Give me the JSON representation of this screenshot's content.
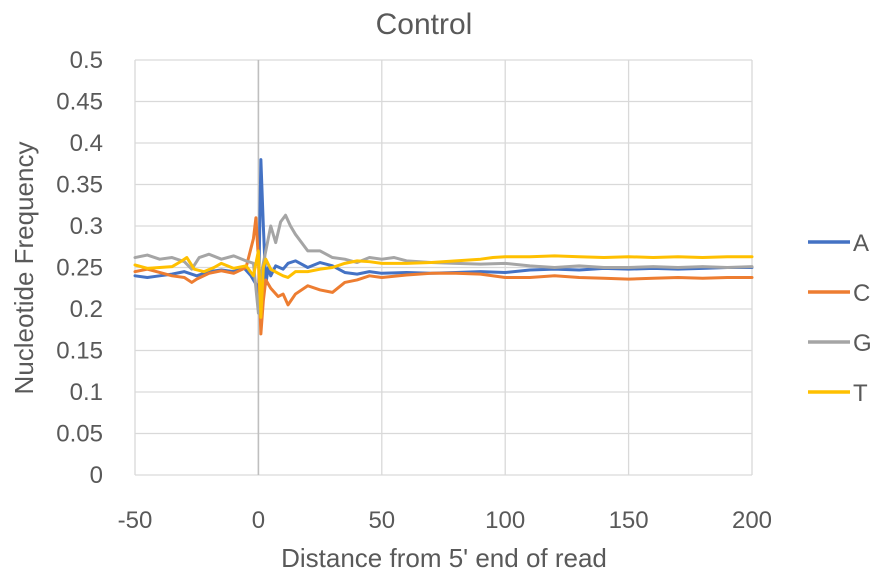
{
  "chart_data": {
    "type": "line",
    "title": "Control",
    "xlabel": "Distance from 5' end of read",
    "ylabel": "Nucleotide Frequency",
    "xlim": [
      -50,
      200
    ],
    "ylim": [
      0,
      0.5
    ],
    "x_ticks": [
      -50,
      0,
      50,
      100,
      150,
      200
    ],
    "x_tick_labels": [
      "-50",
      "0",
      "50",
      "100",
      "150",
      "200"
    ],
    "y_ticks": [
      0,
      0.05,
      0.1,
      0.15,
      0.2,
      0.25,
      0.3,
      0.35,
      0.4,
      0.45,
      0.5
    ],
    "y_tick_labels": [
      "0",
      "0.05",
      "0.1",
      "0.15",
      "0.2",
      "0.25",
      "0.3",
      "0.35",
      "0.4",
      "0.45",
      "0.5"
    ],
    "grid": true,
    "legend_position": "right",
    "series": [
      {
        "name": "A",
        "color": "#4472C4",
        "points": [
          [
            -50,
            0.24
          ],
          [
            -45,
            0.238
          ],
          [
            -40,
            0.24
          ],
          [
            -35,
            0.242
          ],
          [
            -30,
            0.245
          ],
          [
            -25,
            0.24
          ],
          [
            -20,
            0.245
          ],
          [
            -15,
            0.247
          ],
          [
            -10,
            0.245
          ],
          [
            -6,
            0.25
          ],
          [
            -3,
            0.24
          ],
          [
            -1,
            0.23
          ],
          [
            0,
            0.2
          ],
          [
            1,
            0.38
          ],
          [
            2,
            0.3
          ],
          [
            3,
            0.23
          ],
          [
            4,
            0.25
          ],
          [
            5,
            0.24
          ],
          [
            7,
            0.252
          ],
          [
            10,
            0.248
          ],
          [
            12,
            0.255
          ],
          [
            15,
            0.258
          ],
          [
            20,
            0.25
          ],
          [
            25,
            0.256
          ],
          [
            30,
            0.252
          ],
          [
            35,
            0.244
          ],
          [
            40,
            0.242
          ],
          [
            45,
            0.245
          ],
          [
            50,
            0.243
          ],
          [
            60,
            0.244
          ],
          [
            70,
            0.243
          ],
          [
            80,
            0.244
          ],
          [
            90,
            0.245
          ],
          [
            100,
            0.244
          ],
          [
            110,
            0.247
          ],
          [
            120,
            0.248
          ],
          [
            130,
            0.247
          ],
          [
            140,
            0.249
          ],
          [
            150,
            0.248
          ],
          [
            160,
            0.249
          ],
          [
            170,
            0.248
          ],
          [
            180,
            0.249
          ],
          [
            190,
            0.25
          ],
          [
            200,
            0.25
          ]
        ]
      },
      {
        "name": "C",
        "color": "#ED7D31",
        "points": [
          [
            -50,
            0.245
          ],
          [
            -45,
            0.248
          ],
          [
            -40,
            0.244
          ],
          [
            -35,
            0.24
          ],
          [
            -30,
            0.238
          ],
          [
            -27,
            0.232
          ],
          [
            -25,
            0.236
          ],
          [
            -20,
            0.243
          ],
          [
            -15,
            0.246
          ],
          [
            -10,
            0.243
          ],
          [
            -5,
            0.25
          ],
          [
            -2,
            0.285
          ],
          [
            -1,
            0.31
          ],
          [
            0,
            0.26
          ],
          [
            1,
            0.17
          ],
          [
            2,
            0.21
          ],
          [
            3,
            0.235
          ],
          [
            5,
            0.225
          ],
          [
            8,
            0.215
          ],
          [
            10,
            0.218
          ],
          [
            12,
            0.205
          ],
          [
            15,
            0.218
          ],
          [
            20,
            0.228
          ],
          [
            25,
            0.223
          ],
          [
            30,
            0.22
          ],
          [
            35,
            0.232
          ],
          [
            40,
            0.235
          ],
          [
            45,
            0.24
          ],
          [
            50,
            0.238
          ],
          [
            60,
            0.241
          ],
          [
            70,
            0.243
          ],
          [
            80,
            0.243
          ],
          [
            90,
            0.242
          ],
          [
            100,
            0.238
          ],
          [
            110,
            0.238
          ],
          [
            120,
            0.24
          ],
          [
            130,
            0.238
          ],
          [
            140,
            0.237
          ],
          [
            150,
            0.236
          ],
          [
            160,
            0.237
          ],
          [
            170,
            0.238
          ],
          [
            180,
            0.237
          ],
          [
            190,
            0.238
          ],
          [
            200,
            0.238
          ]
        ]
      },
      {
        "name": "G",
        "color": "#A5A5A5",
        "points": [
          [
            -50,
            0.262
          ],
          [
            -45,
            0.265
          ],
          [
            -40,
            0.26
          ],
          [
            -35,
            0.262
          ],
          [
            -30,
            0.257
          ],
          [
            -27,
            0.248
          ],
          [
            -24,
            0.262
          ],
          [
            -20,
            0.266
          ],
          [
            -15,
            0.26
          ],
          [
            -10,
            0.264
          ],
          [
            -5,
            0.258
          ],
          [
            -2,
            0.255
          ],
          [
            0,
            0.195
          ],
          [
            1,
            0.24
          ],
          [
            3,
            0.27
          ],
          [
            5,
            0.3
          ],
          [
            7,
            0.28
          ],
          [
            9,
            0.305
          ],
          [
            11,
            0.313
          ],
          [
            13,
            0.3
          ],
          [
            15,
            0.29
          ],
          [
            20,
            0.27
          ],
          [
            25,
            0.27
          ],
          [
            30,
            0.262
          ],
          [
            35,
            0.26
          ],
          [
            40,
            0.256
          ],
          [
            45,
            0.262
          ],
          [
            50,
            0.26
          ],
          [
            55,
            0.262
          ],
          [
            60,
            0.258
          ],
          [
            70,
            0.256
          ],
          [
            80,
            0.255
          ],
          [
            90,
            0.254
          ],
          [
            100,
            0.255
          ],
          [
            110,
            0.252
          ],
          [
            120,
            0.25
          ],
          [
            130,
            0.252
          ],
          [
            140,
            0.25
          ],
          [
            150,
            0.25
          ],
          [
            160,
            0.251
          ],
          [
            170,
            0.25
          ],
          [
            180,
            0.251
          ],
          [
            190,
            0.25
          ],
          [
            200,
            0.251
          ]
        ]
      },
      {
        "name": "T",
        "color": "#FFC000",
        "points": [
          [
            -50,
            0.253
          ],
          [
            -45,
            0.249
          ],
          [
            -40,
            0.25
          ],
          [
            -35,
            0.251
          ],
          [
            -31,
            0.258
          ],
          [
            -29,
            0.262
          ],
          [
            -26,
            0.248
          ],
          [
            -22,
            0.245
          ],
          [
            -18,
            0.25
          ],
          [
            -15,
            0.255
          ],
          [
            -10,
            0.249
          ],
          [
            -5,
            0.252
          ],
          [
            -2,
            0.24
          ],
          [
            0,
            0.27
          ],
          [
            1,
            0.19
          ],
          [
            2,
            0.25
          ],
          [
            3,
            0.26
          ],
          [
            5,
            0.248
          ],
          [
            8,
            0.243
          ],
          [
            10,
            0.24
          ],
          [
            12,
            0.238
          ],
          [
            15,
            0.245
          ],
          [
            20,
            0.245
          ],
          [
            25,
            0.248
          ],
          [
            30,
            0.25
          ],
          [
            35,
            0.255
          ],
          [
            40,
            0.258
          ],
          [
            45,
            0.257
          ],
          [
            50,
            0.255
          ],
          [
            60,
            0.255
          ],
          [
            70,
            0.256
          ],
          [
            80,
            0.258
          ],
          [
            90,
            0.26
          ],
          [
            95,
            0.262
          ],
          [
            100,
            0.263
          ],
          [
            110,
            0.263
          ],
          [
            120,
            0.264
          ],
          [
            130,
            0.263
          ],
          [
            140,
            0.262
          ],
          [
            150,
            0.263
          ],
          [
            160,
            0.262
          ],
          [
            170,
            0.263
          ],
          [
            180,
            0.262
          ],
          [
            190,
            0.263
          ],
          [
            200,
            0.263
          ]
        ]
      }
    ]
  }
}
